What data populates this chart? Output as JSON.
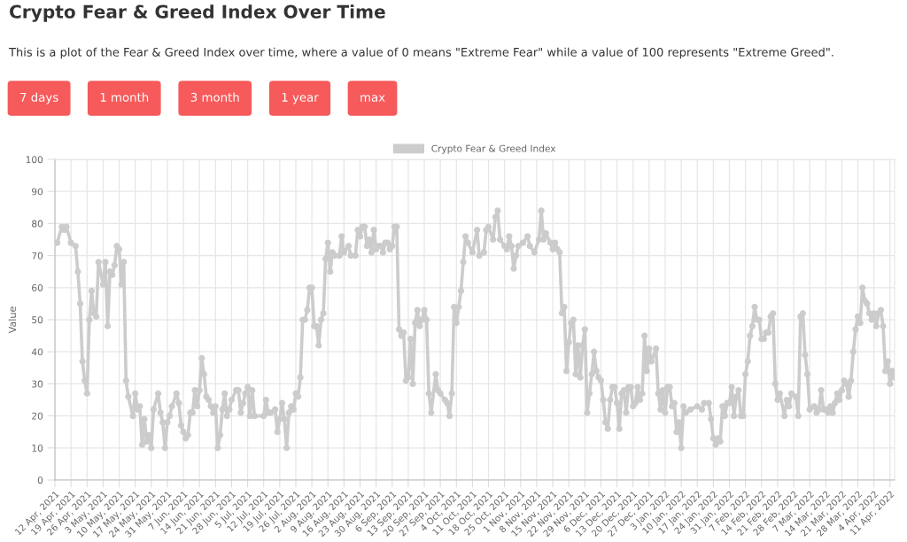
{
  "chart_data": {
    "type": "line",
    "title": "Crypto Fear & Greed Index Over Time",
    "subtitle": "This is a plot of the Fear & Greed Index over time, where a value of 0 means \"Extreme Fear\" while a value of 100 represents \"Extreme Greed\".",
    "annotations": [
      "7 days",
      "1 month",
      "3 month",
      "1 year",
      "max"
    ],
    "ylabel": "Value",
    "ylim": [
      0,
      100
    ],
    "yticks": [
      0,
      10,
      20,
      30,
      40,
      50,
      60,
      70,
      80,
      90,
      100
    ],
    "xlim": [
      "2021-04-12",
      "2022-04-13"
    ],
    "xticks": [
      {
        "value": "2021-04-12",
        "label": "12 Apr, 2021"
      },
      {
        "value": "2021-04-19",
        "label": "19 Apr, 2021"
      },
      {
        "value": "2021-04-26",
        "label": "26 Apr, 2021"
      },
      {
        "value": "2021-05-03",
        "label": "3 May, 2021"
      },
      {
        "value": "2021-05-10",
        "label": "10 May, 2021"
      },
      {
        "value": "2021-05-17",
        "label": "17 May, 2021"
      },
      {
        "value": "2021-05-24",
        "label": "24 May, 2021"
      },
      {
        "value": "2021-05-31",
        "label": "31 May, 2021"
      },
      {
        "value": "2021-06-07",
        "label": "7 Jun, 2021"
      },
      {
        "value": "2021-06-14",
        "label": "14 Jun, 2021"
      },
      {
        "value": "2021-06-21",
        "label": "21 Jun, 2021"
      },
      {
        "value": "2021-06-28",
        "label": "28 Jun, 2021"
      },
      {
        "value": "2021-07-05",
        "label": "5 Jul, 2021"
      },
      {
        "value": "2021-07-12",
        "label": "12 Jul, 2021"
      },
      {
        "value": "2021-07-19",
        "label": "19 Jul, 2021"
      },
      {
        "value": "2021-07-26",
        "label": "26 Jul, 2021"
      },
      {
        "value": "2021-08-02",
        "label": "2 Aug, 2021"
      },
      {
        "value": "2021-08-09",
        "label": "9 Aug, 2021"
      },
      {
        "value": "2021-08-16",
        "label": "16 Aug, 2021"
      },
      {
        "value": "2021-08-23",
        "label": "23 Aug, 2021"
      },
      {
        "value": "2021-08-30",
        "label": "30 Aug, 2021"
      },
      {
        "value": "2021-09-06",
        "label": "6 Sep, 2021"
      },
      {
        "value": "2021-09-13",
        "label": "13 Sep, 2021"
      },
      {
        "value": "2021-09-20",
        "label": "20 Sep, 2021"
      },
      {
        "value": "2021-09-27",
        "label": "27 Sep, 2021"
      },
      {
        "value": "2021-10-04",
        "label": "4 Oct, 2021"
      },
      {
        "value": "2021-10-11",
        "label": "11 Oct, 2021"
      },
      {
        "value": "2021-10-18",
        "label": "18 Oct, 2021"
      },
      {
        "value": "2021-10-25",
        "label": "25 Oct, 2021"
      },
      {
        "value": "2021-11-01",
        "label": "1 Nov, 2021"
      },
      {
        "value": "2021-11-08",
        "label": "8 Nov, 2021"
      },
      {
        "value": "2021-11-15",
        "label": "15 Nov, 2021"
      },
      {
        "value": "2021-11-22",
        "label": "22 Nov, 2021"
      },
      {
        "value": "2021-11-29",
        "label": "29 Nov, 2021"
      },
      {
        "value": "2021-12-06",
        "label": "6 Dec, 2021"
      },
      {
        "value": "2021-12-13",
        "label": "13 Dec, 2021"
      },
      {
        "value": "2021-12-20",
        "label": "20 Dec, 2021"
      },
      {
        "value": "2021-12-27",
        "label": "27 Dec, 2021"
      },
      {
        "value": "2022-01-03",
        "label": "3 Jan, 2022"
      },
      {
        "value": "2022-01-10",
        "label": "10 Jan, 2022"
      },
      {
        "value": "2022-01-17",
        "label": "17 Jan, 2022"
      },
      {
        "value": "2022-01-24",
        "label": "24 Jan, 2022"
      },
      {
        "value": "2022-01-31",
        "label": "31 Jan, 2022"
      },
      {
        "value": "2022-02-07",
        "label": "7 Feb, 2022"
      },
      {
        "value": "2022-02-14",
        "label": "14 Feb, 2022"
      },
      {
        "value": "2022-02-21",
        "label": "21 Feb, 2022"
      },
      {
        "value": "2022-02-28",
        "label": "28 Feb, 2022"
      },
      {
        "value": "2022-03-07",
        "label": "7 Mar, 2022"
      },
      {
        "value": "2022-03-14",
        "label": "14 Mar, 2022"
      },
      {
        "value": "2022-03-21",
        "label": "21 Mar, 2022"
      },
      {
        "value": "2022-03-28",
        "label": "28 Mar, 2022"
      },
      {
        "value": "2022-04-04",
        "label": "4 Apr, 2022"
      },
      {
        "value": "2022-04-11",
        "label": "11 Apr, 2022"
      }
    ],
    "grid": true,
    "legend": "top",
    "marker": "circle",
    "line_style": "solid",
    "series": [
      {
        "name": "Crypto Fear & Greed Index",
        "color": "#cccccc",
        "x": [
          "2021-04-12",
          "2021-04-13",
          "2021-04-15",
          "2021-04-16",
          "2021-04-17",
          "2021-04-19",
          "2021-04-21",
          "2021-04-22",
          "2021-04-23",
          "2021-04-24",
          "2021-04-25",
          "2021-04-26",
          "2021-04-27",
          "2021-04-28",
          "2021-04-29",
          "2021-04-30",
          "2021-05-01",
          "2021-05-03",
          "2021-05-04",
          "2021-05-05",
          "2021-05-06",
          "2021-05-07",
          "2021-05-08",
          "2021-05-09",
          "2021-05-10",
          "2021-05-11",
          "2021-05-12",
          "2021-05-13",
          "2021-05-14",
          "2021-05-16",
          "2021-05-17",
          "2021-05-18",
          "2021-05-19",
          "2021-05-20",
          "2021-05-21",
          "2021-05-22",
          "2021-05-23",
          "2021-05-24",
          "2021-05-25",
          "2021-05-27",
          "2021-05-28",
          "2021-05-29",
          "2021-05-30",
          "2021-05-31",
          "2021-06-01",
          "2021-06-02",
          "2021-06-04",
          "2021-06-05",
          "2021-06-06",
          "2021-06-07",
          "2021-06-08",
          "2021-06-09",
          "2021-06-10",
          "2021-06-11",
          "2021-06-12",
          "2021-06-13",
          "2021-06-14",
          "2021-06-15",
          "2021-06-16",
          "2021-06-17",
          "2021-06-18",
          "2021-06-19",
          "2021-06-20",
          "2021-06-21",
          "2021-06-22",
          "2021-06-23",
          "2021-06-24",
          "2021-06-25",
          "2021-06-26",
          "2021-06-27",
          "2021-06-28",
          "2021-06-30",
          "2021-07-01",
          "2021-07-02",
          "2021-07-03",
          "2021-07-04",
          "2021-07-05",
          "2021-07-06",
          "2021-07-07",
          "2021-07-08",
          "2021-07-12",
          "2021-07-13",
          "2021-07-14",
          "2021-07-15",
          "2021-07-17",
          "2021-07-18",
          "2021-07-19",
          "2021-07-20",
          "2021-07-21",
          "2021-07-22",
          "2021-07-23",
          "2021-07-24",
          "2021-07-25",
          "2021-07-26",
          "2021-07-27",
          "2021-07-28",
          "2021-07-29",
          "2021-07-30",
          "2021-07-31",
          "2021-08-01",
          "2021-08-02",
          "2021-08-03",
          "2021-08-04",
          "2021-08-05",
          "2021-08-06",
          "2021-08-07",
          "2021-08-08",
          "2021-08-09",
          "2021-08-10",
          "2021-08-11",
          "2021-08-12",
          "2021-08-14",
          "2021-08-15",
          "2021-08-16",
          "2021-08-18",
          "2021-08-19",
          "2021-08-21",
          "2021-08-22",
          "2021-08-23",
          "2021-08-24",
          "2021-08-25",
          "2021-08-26",
          "2021-08-27",
          "2021-08-28",
          "2021-08-29",
          "2021-08-30",
          "2021-08-31",
          "2021-09-01",
          "2021-09-02",
          "2021-09-03",
          "2021-09-04",
          "2021-09-05",
          "2021-09-06",
          "2021-09-07",
          "2021-09-08",
          "2021-09-09",
          "2021-09-10",
          "2021-09-11",
          "2021-09-12",
          "2021-09-13",
          "2021-09-14",
          "2021-09-15",
          "2021-09-16",
          "2021-09-17",
          "2021-09-18",
          "2021-09-19",
          "2021-09-20",
          "2021-09-21",
          "2021-09-22",
          "2021-09-23",
          "2021-09-25",
          "2021-09-26",
          "2021-09-27",
          "2021-09-29",
          "2021-09-30",
          "2021-10-01",
          "2021-10-02",
          "2021-10-03",
          "2021-10-04",
          "2021-10-05",
          "2021-10-06",
          "2021-10-07",
          "2021-10-08",
          "2021-10-09",
          "2021-10-11",
          "2021-10-13",
          "2021-10-14",
          "2021-10-16",
          "2021-10-17",
          "2021-10-18",
          "2021-10-20",
          "2021-10-21",
          "2021-10-22",
          "2021-10-23",
          "2021-10-25",
          "2021-10-26",
          "2021-10-27",
          "2021-10-28",
          "2021-10-29",
          "2021-10-30",
          "2021-10-31",
          "2021-11-02",
          "2021-11-04",
          "2021-11-05",
          "2021-11-07",
          "2021-11-09",
          "2021-11-10",
          "2021-11-11",
          "2021-11-12",
          "2021-11-14",
          "2021-11-15",
          "2021-11-16",
          "2021-11-17",
          "2021-11-18",
          "2021-11-19",
          "2021-11-20",
          "2021-11-21",
          "2021-11-22",
          "2021-11-23",
          "2021-11-24",
          "2021-11-25",
          "2021-11-26",
          "2021-11-27",
          "2021-11-28",
          "2021-11-29",
          "2021-11-30",
          "2021-12-01",
          "2021-12-02",
          "2021-12-03",
          "2021-12-04",
          "2021-12-05",
          "2021-12-06",
          "2021-12-07",
          "2021-12-08",
          "2021-12-09",
          "2021-12-10",
          "2021-12-11",
          "2021-12-12",
          "2021-12-13",
          "2021-12-14",
          "2021-12-15",
          "2021-12-16",
          "2021-12-17",
          "2021-12-18",
          "2021-12-19",
          "2021-12-20",
          "2021-12-21",
          "2021-12-22",
          "2021-12-23",
          "2021-12-24",
          "2021-12-25",
          "2021-12-26",
          "2021-12-27",
          "2021-12-28",
          "2021-12-30",
          "2021-12-31",
          "2022-01-01",
          "2022-01-02",
          "2022-01-03",
          "2022-01-04",
          "2022-01-05",
          "2022-01-06",
          "2022-01-07",
          "2022-01-08",
          "2022-01-09",
          "2022-01-10",
          "2022-01-11",
          "2022-01-12",
          "2022-01-14",
          "2022-01-17",
          "2022-01-19",
          "2022-01-20",
          "2022-01-22",
          "2022-01-23",
          "2022-01-24",
          "2022-01-25",
          "2022-01-26",
          "2022-01-27",
          "2022-01-28",
          "2022-01-29",
          "2022-01-30",
          "2022-01-31",
          "2022-02-01",
          "2022-02-02",
          "2022-02-03",
          "2022-02-04",
          "2022-02-05",
          "2022-02-06",
          "2022-02-07",
          "2022-02-08",
          "2022-02-09",
          "2022-02-10",
          "2022-02-11",
          "2022-02-12",
          "2022-02-13",
          "2022-02-14",
          "2022-02-15",
          "2022-02-16",
          "2022-02-17",
          "2022-02-18",
          "2022-02-19",
          "2022-02-20",
          "2022-02-21",
          "2022-02-22",
          "2022-02-24",
          "2022-02-25",
          "2022-02-26",
          "2022-02-27",
          "2022-03-01",
          "2022-03-02",
          "2022-03-03",
          "2022-03-04",
          "2022-03-05",
          "2022-03-06",
          "2022-03-07",
          "2022-03-09",
          "2022-03-10",
          "2022-03-11",
          "2022-03-12",
          "2022-03-13",
          "2022-03-14",
          "2022-03-15",
          "2022-03-16",
          "2022-03-17",
          "2022-03-18",
          "2022-03-19",
          "2022-03-20",
          "2022-03-21",
          "2022-03-22",
          "2022-03-23",
          "2022-03-24",
          "2022-03-25",
          "2022-03-26",
          "2022-03-27",
          "2022-03-28",
          "2022-03-29",
          "2022-03-30",
          "2022-03-31",
          "2022-04-01",
          "2022-04-02",
          "2022-04-03",
          "2022-04-04",
          "2022-04-05",
          "2022-04-06",
          "2022-04-07",
          "2022-04-08",
          "2022-04-09",
          "2022-04-10",
          "2022-04-11",
          "2022-04-12",
          "2022-04-13"
        ],
        "values": [
          74,
          74,
          79,
          78,
          79,
          74,
          73,
          65,
          55,
          37,
          31,
          27,
          50,
          59,
          52,
          51,
          68,
          61,
          68,
          48,
          65,
          64,
          67,
          73,
          72,
          61,
          68,
          31,
          26,
          20,
          27,
          22,
          23,
          11,
          19,
          12,
          14,
          10,
          22,
          27,
          21,
          18,
          10,
          18,
          20,
          23,
          27,
          24,
          17,
          15,
          13,
          14,
          21,
          21,
          28,
          23,
          28,
          38,
          33,
          26,
          25,
          23,
          21,
          23,
          10,
          14,
          22,
          27,
          20,
          22,
          25,
          28,
          28,
          21,
          24,
          27,
          29,
          20,
          28,
          20,
          20,
          25,
          21,
          21,
          22,
          15,
          19,
          24,
          19,
          10,
          21,
          23,
          22,
          27,
          26,
          32,
          50,
          50,
          53,
          60,
          60,
          48,
          48,
          42,
          50,
          52,
          69,
          74,
          65,
          71,
          70,
          70,
          76,
          71,
          73,
          70,
          70,
          78,
          76,
          79,
          79,
          73,
          75,
          71,
          78,
          72,
          73,
          73,
          71,
          74,
          74,
          72,
          73,
          79,
          79,
          47,
          45,
          46,
          31,
          32,
          44,
          30,
          49,
          53,
          48,
          50,
          53,
          50,
          27,
          21,
          33,
          28,
          27,
          25,
          24,
          20,
          27,
          54,
          49,
          54,
          59,
          68,
          76,
          74,
          71,
          78,
          70,
          71,
          78,
          79,
          75,
          82,
          84,
          75,
          73,
          72,
          76,
          73,
          66,
          70,
          73,
          74,
          76,
          73,
          71,
          75,
          84,
          75,
          77,
          74,
          72,
          74,
          72,
          71,
          52,
          54,
          34,
          43,
          49,
          50,
          33,
          42,
          32,
          42,
          47,
          21,
          27,
          33,
          40,
          34,
          32,
          31,
          25,
          18,
          16,
          25,
          29,
          29,
          24,
          16,
          27,
          28,
          21,
          29,
          29,
          23,
          24,
          29,
          25,
          27,
          45,
          34,
          41,
          37,
          41,
          27,
          22,
          28,
          21,
          29,
          29,
          23,
          24,
          15,
          18,
          10,
          23,
          21,
          22,
          23,
          22,
          24,
          24,
          19,
          13,
          11,
          13,
          12,
          23,
          20,
          24,
          24,
          29,
          20,
          26,
          28,
          20,
          20,
          33,
          37,
          45,
          48,
          54,
          50,
          50,
          44,
          44,
          46,
          46,
          51,
          52,
          30,
          25,
          27,
          20,
          25,
          23,
          27,
          26,
          20,
          51,
          52,
          39,
          33,
          22,
          23,
          21,
          22,
          28,
          22,
          22,
          21,
          23,
          21,
          24,
          27,
          25,
          28,
          31,
          30,
          26,
          31,
          40,
          47,
          51,
          49,
          60,
          56,
          55,
          52,
          50,
          52,
          48,
          52,
          53,
          48,
          34,
          37,
          30,
          34,
          32
        ]
      }
    ]
  }
}
